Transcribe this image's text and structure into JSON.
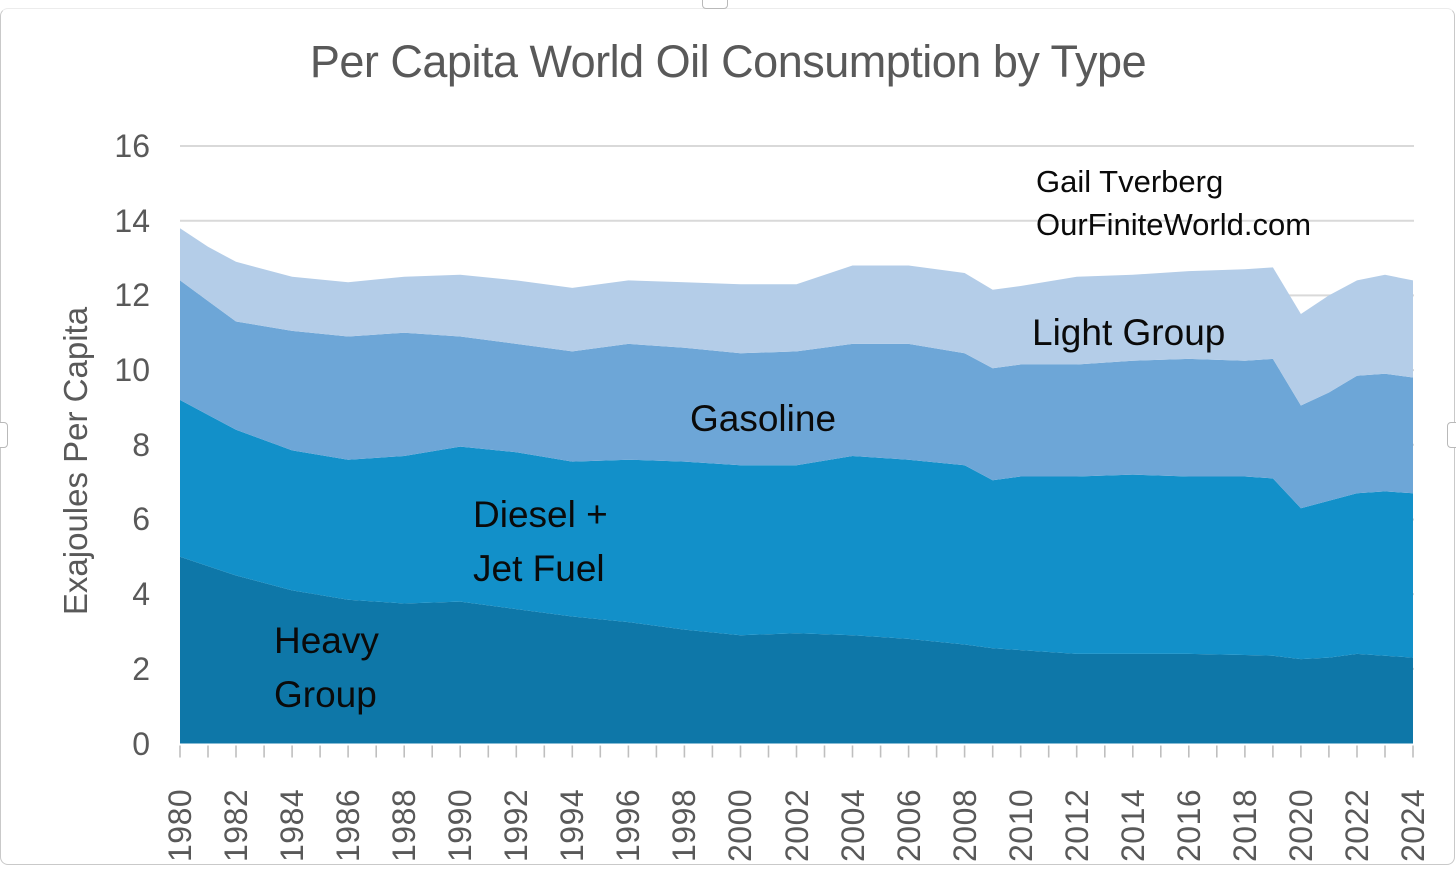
{
  "window": {
    "chrome_note": "image selection border with resize handles",
    "border_color": "#c9c9c9"
  },
  "chart_data": {
    "type": "area",
    "stacked": true,
    "title": "Per Capita World Oil Consumption by Type",
    "ylabel": "Exajoules Per Capita",
    "xlabel": "",
    "annotation_line1": "Gail Tverberg",
    "annotation_line2": "OurFiniteWorld.com",
    "legend_position": "labels-inside-areas",
    "grid": true,
    "ylim": [
      0,
      16
    ],
    "yticks": [
      0,
      2,
      4,
      6,
      8,
      10,
      12,
      14,
      16
    ],
    "xticks_labeled": [
      1980,
      1982,
      1984,
      1986,
      1988,
      1990,
      1992,
      1994,
      1996,
      1998,
      2000,
      2002,
      2004,
      2006,
      2008,
      2010,
      2012,
      2014,
      2016,
      2018,
      2020,
      2022,
      2024
    ],
    "x": [
      1980,
      1981,
      1982,
      1984,
      1986,
      1988,
      1990,
      1992,
      1994,
      1996,
      1998,
      2000,
      2002,
      2004,
      2006,
      2008,
      2009,
      2010,
      2012,
      2014,
      2016,
      2018,
      2019,
      2020,
      2021,
      2022,
      2023,
      2024
    ],
    "series": [
      {
        "name": "Heavy Group",
        "label_line1": "Heavy",
        "label_line2": "Group",
        "color": "#0E77A8",
        "values": [
          5.0,
          4.75,
          4.5,
          4.1,
          3.85,
          3.75,
          3.8,
          3.6,
          3.4,
          3.25,
          3.05,
          2.9,
          2.95,
          2.9,
          2.8,
          2.65,
          2.55,
          2.5,
          2.4,
          2.4,
          2.4,
          2.37,
          2.35,
          2.26,
          2.3,
          2.4,
          2.35,
          2.3
        ]
      },
      {
        "name": "Diesel + Jet Fuel",
        "label_line1": "Diesel +",
        "label_line2": "Jet Fuel",
        "color": "#1290C9",
        "values": [
          4.2,
          4.05,
          3.9,
          3.75,
          3.75,
          3.95,
          4.15,
          4.2,
          4.15,
          4.35,
          4.5,
          4.55,
          4.5,
          4.8,
          4.8,
          4.8,
          4.5,
          4.65,
          4.75,
          4.8,
          4.75,
          4.78,
          4.75,
          4.04,
          4.2,
          4.3,
          4.4,
          4.4
        ]
      },
      {
        "name": "Gasoline",
        "label_line1": "Gasoline",
        "label_line2": "",
        "color": "#6DA6D7",
        "values": [
          3.2,
          3.05,
          2.9,
          3.2,
          3.3,
          3.3,
          2.95,
          2.9,
          2.95,
          3.1,
          3.05,
          3.0,
          3.05,
          3.0,
          3.1,
          3.0,
          3.0,
          3.0,
          3.0,
          3.05,
          3.15,
          3.1,
          3.2,
          2.75,
          2.9,
          3.15,
          3.15,
          3.1
        ]
      },
      {
        "name": "Light Group",
        "label_line1": "Light Group",
        "label_line2": "",
        "color": "#B4CDE8",
        "values": [
          1.4,
          1.45,
          1.6,
          1.45,
          1.45,
          1.5,
          1.65,
          1.7,
          1.7,
          1.7,
          1.75,
          1.85,
          1.8,
          2.1,
          2.1,
          2.15,
          2.1,
          2.1,
          2.35,
          2.3,
          2.35,
          2.45,
          2.45,
          2.45,
          2.6,
          2.55,
          2.65,
          2.6
        ]
      }
    ],
    "colors": {
      "grid": "#D9D9D9",
      "axis_ticks": "#BFBFBF",
      "axis_text": "#595959",
      "title_text": "#595959",
      "inner_label_text": "#0a0a0a"
    }
  }
}
